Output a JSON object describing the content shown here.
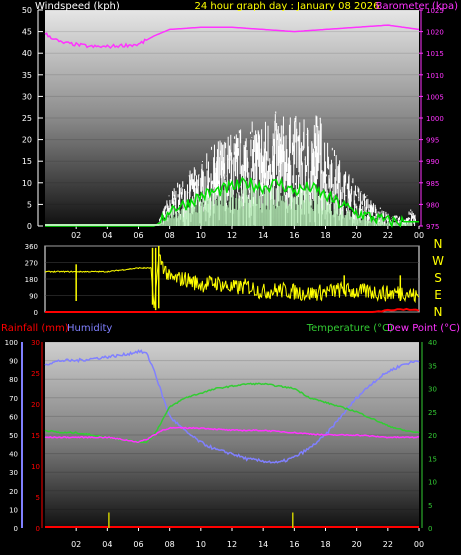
{
  "colors": {
    "bg": "#000000",
    "wind": "#ffffff",
    "gust": "#ffffff",
    "wind_avg": "#00e000",
    "wind_light": "#b8f0b8",
    "baro": "#ff33ff",
    "winddir": "#ffff00",
    "humidity": "#8080ff",
    "temp": "#33cc33",
    "dew": "#ff33ff",
    "rain": "#ff0000",
    "rainrate": "#cccc00",
    "nwsen": "#ffff00"
  },
  "chart_data": [
    {
      "type": "line",
      "title": "24 hour graph day : January 08 2026",
      "ylabel": "Windspeed (kph)",
      "y2label": "Barometer (kpa)",
      "x_ticks": [
        "02",
        "04",
        "06",
        "08",
        "10",
        "12",
        "14",
        "16",
        "18",
        "20",
        "22",
        "00"
      ],
      "y_ticks": [
        "0",
        "5",
        "10",
        "15",
        "20",
        "25",
        "30",
        "35",
        "40",
        "45",
        "50"
      ],
      "ylim": [
        0,
        50
      ],
      "y2_ticks": [
        "975",
        "980",
        "985",
        "990",
        "995",
        "1000",
        "1005",
        "1010",
        "1015",
        "1020",
        "1025"
      ],
      "y2lim": [
        975,
        1025
      ],
      "series": [
        {
          "name": "wind_gust",
          "x": [
            0,
            6,
            7,
            7.5,
            8,
            9,
            10,
            11,
            12,
            13,
            14,
            15,
            15.5,
            16,
            17,
            17.5,
            18,
            19,
            20,
            21,
            22,
            23,
            23.5,
            24
          ],
          "values": [
            0,
            0,
            0,
            3,
            8,
            12,
            15,
            20,
            22,
            24,
            25,
            27,
            25,
            26,
            24,
            28,
            22,
            15,
            10,
            6,
            3,
            2,
            4,
            3
          ]
        },
        {
          "name": "wind_avg",
          "x": [
            0,
            6,
            7,
            7.5,
            8,
            9,
            10,
            11,
            12,
            13,
            14,
            15,
            16,
            17,
            18,
            19,
            20,
            21,
            22,
            23,
            24
          ],
          "values": [
            0,
            0,
            0,
            1,
            4,
            5,
            7,
            8,
            9,
            10,
            9,
            10,
            8,
            9,
            7,
            5,
            3,
            2,
            1,
            1,
            1
          ]
        },
        {
          "name": "barometer",
          "x": [
            0,
            0.5,
            1,
            2,
            3,
            4,
            5,
            6,
            6.5,
            7,
            8,
            10,
            12,
            14,
            16,
            18,
            20,
            22,
            23,
            24
          ],
          "values": [
            1019.5,
            1018.5,
            1017.5,
            1017,
            1016.5,
            1016.5,
            1016.8,
            1017,
            1018,
            1019,
            1020.5,
            1021,
            1021,
            1020.5,
            1020,
            1020.5,
            1021,
            1021.5,
            1021,
            1020.5
          ]
        }
      ]
    },
    {
      "type": "line",
      "x_ticks": [
        "02",
        "04",
        "06",
        "08",
        "10",
        "12",
        "14",
        "16",
        "18",
        "20",
        "22",
        "00"
      ],
      "y_ticks": [
        "0",
        "90",
        "180",
        "270",
        "360"
      ],
      "ylim": [
        0,
        360
      ],
      "dir_labels": [
        "N",
        "W",
        "S",
        "E",
        "N"
      ],
      "series": [
        {
          "name": "wind_direction",
          "x": [
            0,
            2,
            4,
            5,
            6,
            6.8,
            7,
            7.3,
            7.6,
            8,
            9,
            10,
            11,
            12,
            13,
            14,
            15,
            16,
            17,
            18,
            19,
            20,
            21,
            22,
            23,
            24
          ],
          "values": [
            220,
            220,
            220,
            230,
            240,
            240,
            20,
            300,
            250,
            180,
            180,
            150,
            160,
            130,
            140,
            110,
            120,
            110,
            100,
            110,
            120,
            110,
            110,
            100,
            110,
            80
          ]
        },
        {
          "name": "rain_rate",
          "x": [
            0,
            21,
            22,
            23,
            24
          ],
          "values": [
            0,
            0,
            10,
            14,
            10
          ]
        }
      ]
    },
    {
      "type": "line",
      "ylabel": "Rainfall (mm)",
      "y1label": "Humidity",
      "y2label": "Temperature (°C)",
      "y3label": "Dew Point (°C)",
      "x_ticks": [
        "02",
        "04",
        "06",
        "08",
        "10",
        "12",
        "14",
        "16",
        "18",
        "20",
        "22",
        "00"
      ],
      "rain_ticks": [
        "0",
        "5",
        "10",
        "15",
        "20",
        "25",
        "30"
      ],
      "rainlim": [
        0,
        30
      ],
      "hum_ticks": [
        "0",
        "10",
        "20",
        "30",
        "40",
        "50",
        "60",
        "70",
        "80",
        "90",
        "100"
      ],
      "humlim": [
        0,
        100
      ],
      "temp_ticks": [
        "0",
        "5",
        "10",
        "15",
        "20",
        "25",
        "30",
        "35",
        "40"
      ],
      "templim": [
        0,
        40
      ],
      "series": [
        {
          "name": "humidity",
          "x": [
            0,
            1,
            2,
            3,
            4,
            5,
            6,
            6.5,
            7,
            7.5,
            8,
            9,
            10,
            11,
            12,
            13,
            14,
            15,
            16,
            17,
            18,
            19,
            20,
            21,
            22,
            23,
            24
          ],
          "values": [
            88,
            90,
            90,
            91,
            92,
            93,
            95,
            94,
            85,
            72,
            60,
            52,
            46,
            42,
            40,
            37,
            36,
            35,
            38,
            43,
            50,
            60,
            70,
            78,
            84,
            88,
            90
          ]
        },
        {
          "name": "temperature",
          "x": [
            0,
            1,
            2,
            3,
            4,
            5,
            6,
            6.5,
            7,
            7.5,
            8,
            9,
            10,
            11,
            12,
            13,
            14,
            15,
            16,
            17,
            18,
            19,
            20,
            21,
            22,
            23,
            24
          ],
          "values": [
            21,
            20.5,
            20.5,
            20,
            19.5,
            19,
            18.5,
            18.5,
            20,
            23,
            26,
            28,
            29,
            30,
            30.5,
            31,
            31,
            30.5,
            30,
            28,
            27,
            26,
            25,
            23.5,
            22,
            21,
            20.5
          ]
        },
        {
          "name": "dew_point",
          "x": [
            0,
            2,
            4,
            6,
            6.5,
            7,
            7.5,
            8,
            10,
            12,
            14,
            16,
            18,
            20,
            22,
            24
          ],
          "values": [
            19.5,
            19.5,
            19.5,
            18.5,
            19,
            20,
            21,
            21.5,
            21.5,
            21,
            21,
            20.5,
            20,
            20,
            19.5,
            19.5
          ]
        },
        {
          "name": "rainfall",
          "x": [
            0,
            24
          ],
          "values": [
            0,
            0
          ]
        },
        {
          "name": "rain_rate",
          "x": [
            4.1,
            15.9
          ],
          "values": [
            2.5,
            2.5
          ]
        }
      ]
    }
  ]
}
